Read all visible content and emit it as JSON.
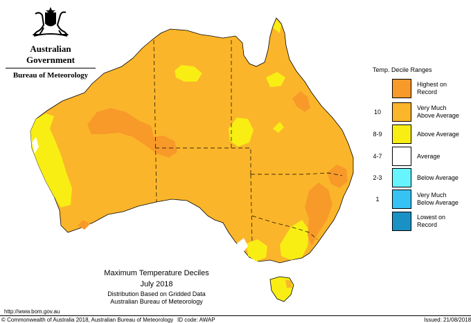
{
  "header": {
    "gov_name": "Australian Government",
    "bureau_name": "Bureau of Meteorology"
  },
  "legend": {
    "title": "Temp. Decile Ranges",
    "items": [
      {
        "code": "",
        "label_line1": "Highest on",
        "label_line2": "Record",
        "color": "#f79a29"
      },
      {
        "code": "10",
        "label_line1": "Very Much",
        "label_line2": "Above Average",
        "color": "#fbb52a"
      },
      {
        "code": "8-9",
        "label_line1": "Above Average",
        "label_line2": "",
        "color": "#f8ee14"
      },
      {
        "code": "4-7",
        "label_line1": "Average",
        "label_line2": "",
        "color": "#ffffff"
      },
      {
        "code": "2-3",
        "label_line1": "Below Average",
        "label_line2": "",
        "color": "#66f5ff"
      },
      {
        "code": "1",
        "label_line1": "Very Much",
        "label_line2": "Below Average",
        "color": "#36c3f4"
      },
      {
        "code": "",
        "label_line1": "Lowest on",
        "label_line2": "Record",
        "color": "#1a91c4"
      }
    ]
  },
  "caption": {
    "title": "Maximum Temperature Deciles",
    "period": "July 2018",
    "line3": "Distribution Based on Gridded Data",
    "line4": "Australian Bureau of Meteorology"
  },
  "footer": {
    "url": "http://www.bom.gov.au",
    "copyright": "© Commonwealth of Australia 2018, Australian Bureau of Meteorology",
    "id_code": "ID code: AWAP",
    "issued": "Issued: 21/08/2018"
  }
}
